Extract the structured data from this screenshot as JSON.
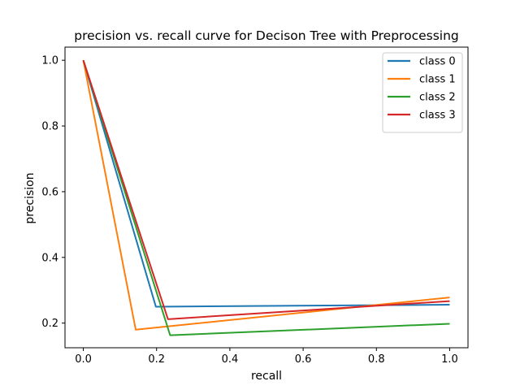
{
  "chart_data": {
    "type": "line",
    "title": "precision vs. recall curve for Decison Tree with Preprocessing",
    "xlabel": "recall",
    "ylabel": "precision",
    "xlim": [
      -0.05,
      1.05
    ],
    "ylim": [
      0.125,
      1.04
    ],
    "xticks": [
      0.0,
      0.2,
      0.4,
      0.6,
      0.8,
      1.0
    ],
    "xtick_labels": [
      "0.0",
      "0.2",
      "0.4",
      "0.6",
      "0.8",
      "1.0"
    ],
    "yticks": [
      0.2,
      0.4,
      0.6,
      0.8,
      1.0
    ],
    "ytick_labels": [
      "0.2",
      "0.4",
      "0.6",
      "0.8",
      "1.0"
    ],
    "grid": false,
    "legend_position": "top-right",
    "series": [
      {
        "name": "class 0",
        "color": "#1f77b4",
        "x": [
          0.0,
          0.198,
          1.0
        ],
        "y": [
          1.0,
          0.25,
          0.256
        ]
      },
      {
        "name": "class 1",
        "color": "#ff7f0e",
        "x": [
          0.0,
          0.143,
          1.0
        ],
        "y": [
          1.0,
          0.18,
          0.278
        ]
      },
      {
        "name": "class 2",
        "color": "#2ca02c",
        "x": [
          0.0,
          0.237,
          1.0
        ],
        "y": [
          1.0,
          0.163,
          0.198
        ]
      },
      {
        "name": "class 3",
        "color": "#d62728",
        "x": [
          0.0,
          0.231,
          1.0
        ],
        "y": [
          1.0,
          0.212,
          0.267
        ]
      }
    ]
  }
}
